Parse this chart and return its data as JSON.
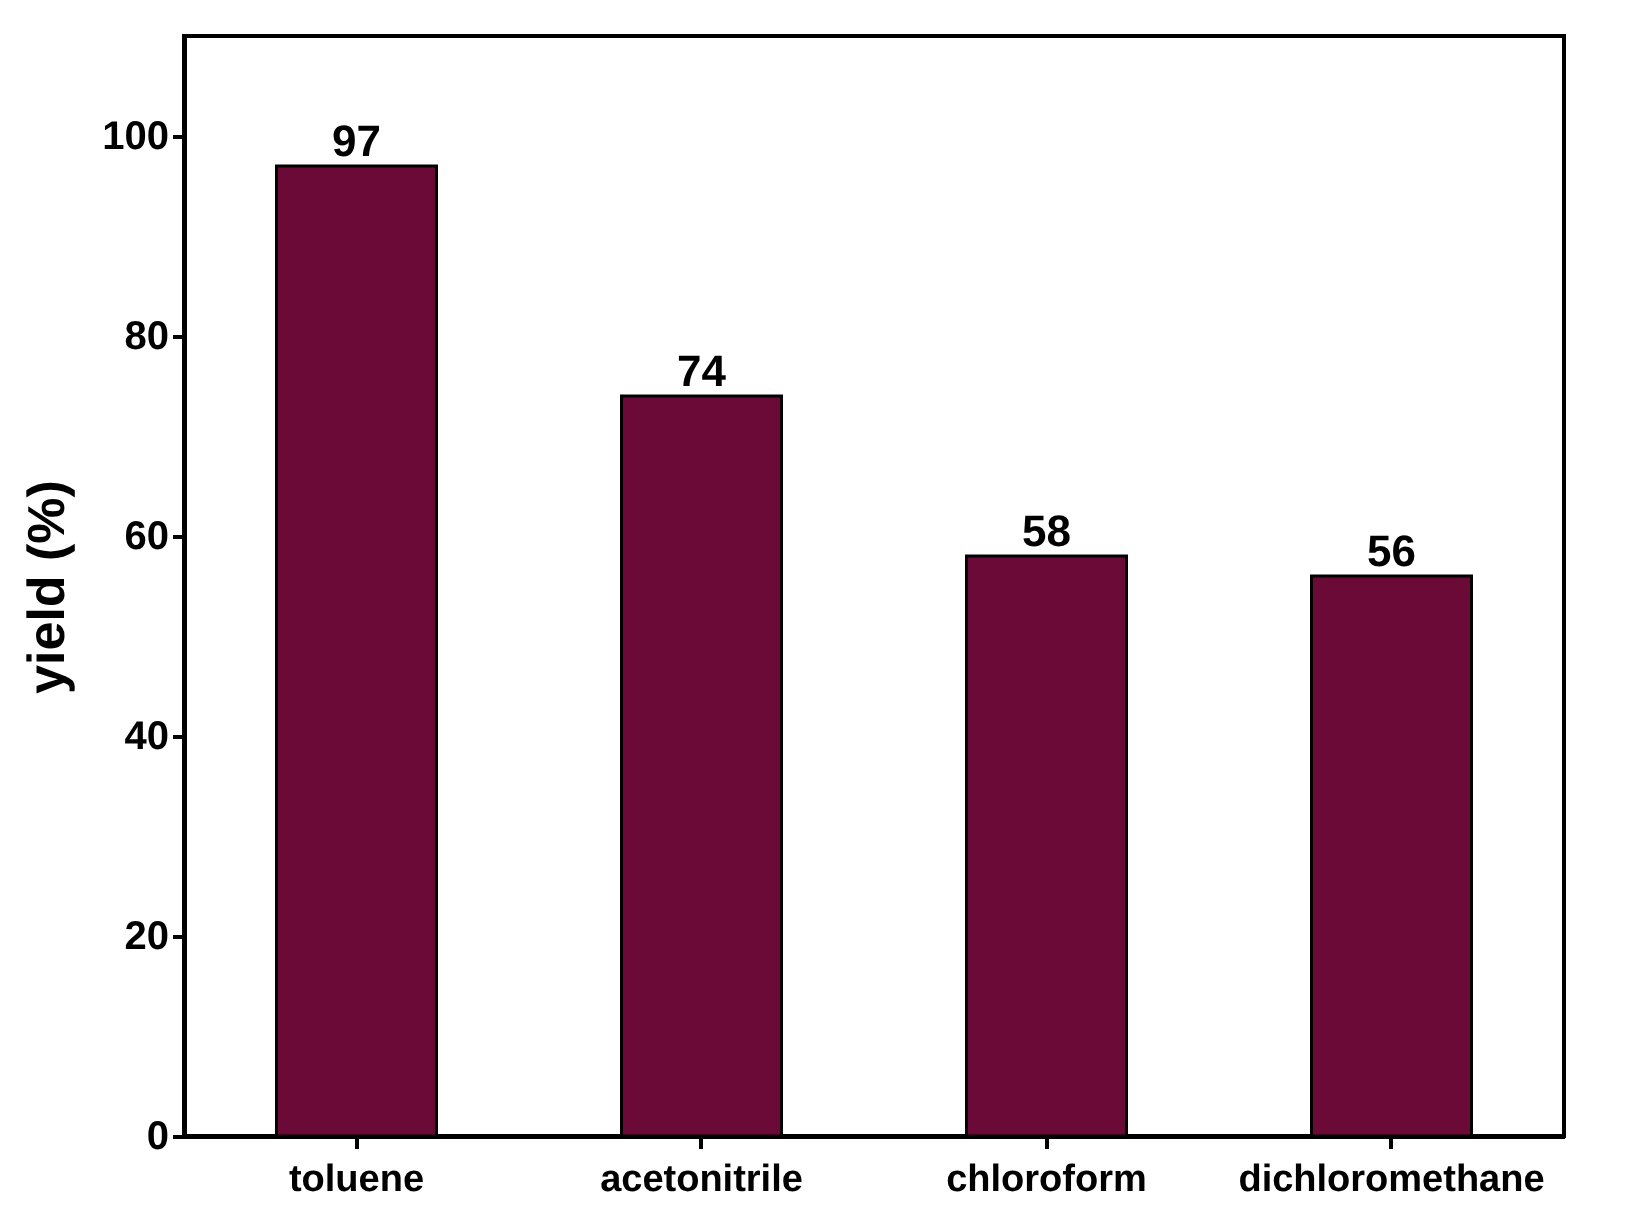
{
  "chart_data": {
    "type": "bar",
    "ylabel": "yield (%)",
    "categories": [
      "toluene",
      "acetonitrile",
      "chloroform",
      "dichloromethane"
    ],
    "values": [
      97,
      74,
      58,
      56
    ],
    "color": "#6b0a36",
    "ylim": [
      0,
      110
    ],
    "yticks": [
      0,
      20,
      40,
      60,
      80,
      100
    ],
    "grid": false,
    "data_labels": true
  }
}
